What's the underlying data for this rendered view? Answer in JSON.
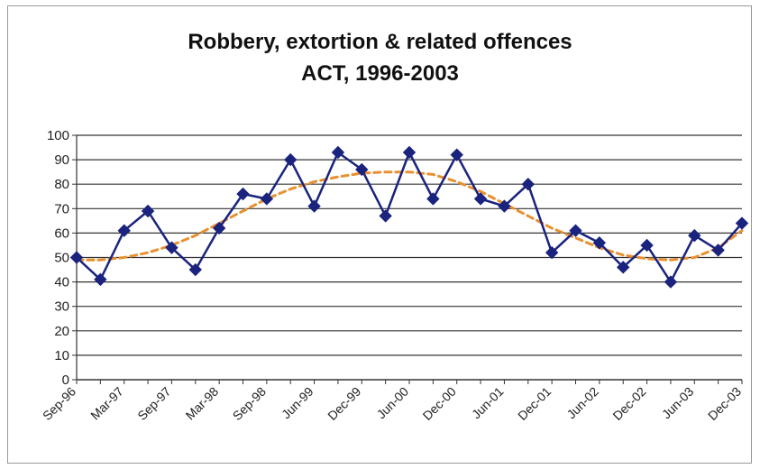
{
  "chart_data": {
    "type": "line",
    "title": "Robbery, extortion & related offences",
    "subtitle": "ACT, 1996-2003",
    "xlabel": "",
    "ylabel": "",
    "ylim": [
      0,
      100
    ],
    "yticks": [
      0,
      10,
      20,
      30,
      40,
      50,
      60,
      70,
      80,
      90,
      100
    ],
    "grid": true,
    "legend": "none",
    "x_tick_labels": [
      "Sep-96",
      "Mar-97",
      "Sep-97",
      "Mar-98",
      "Sep-98",
      "Jun-99",
      "Dec-99",
      "Jun-00",
      "Dec-00",
      "Jun-01",
      "Dec-01",
      "Jun-02",
      "Dec-02",
      "Jun-03",
      "Dec-03"
    ],
    "x_tick_positions": [
      0,
      2,
      4,
      6,
      8,
      10,
      12,
      14,
      16,
      18,
      20,
      22,
      24,
      26,
      28
    ],
    "series": [
      {
        "name": "",
        "style": "line-with-diamond-markers",
        "color": "#1a237e",
        "values": [
          50,
          41,
          61,
          69,
          54,
          45,
          62,
          76,
          74,
          90,
          71,
          93,
          86,
          67,
          93,
          74,
          92,
          74,
          71,
          80,
          52,
          61,
          56,
          46,
          55,
          40,
          59,
          53,
          64
        ]
      },
      {
        "name": "",
        "style": "dashed-trend",
        "color": "#e89030",
        "values": [
          49,
          49,
          50,
          52,
          55,
          59,
          64,
          69,
          74,
          78,
          81,
          83,
          84.5,
          85,
          85,
          84,
          81,
          77,
          72,
          67,
          62,
          58,
          54,
          51,
          49.5,
          49,
          50,
          54,
          61
        ]
      }
    ]
  }
}
